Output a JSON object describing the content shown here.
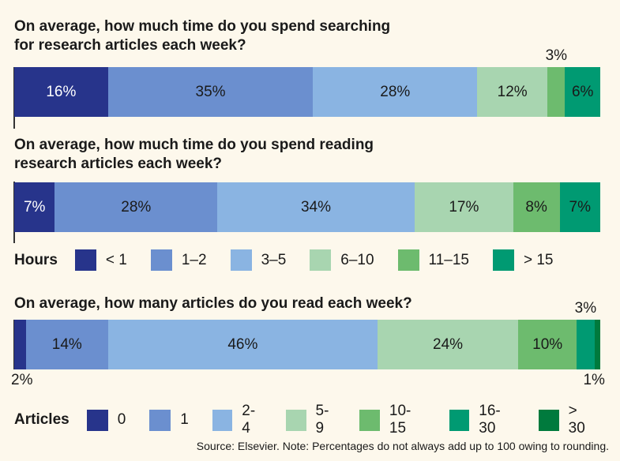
{
  "colors": {
    "c1": "#27348b",
    "c2": "#6b8fcf",
    "c3": "#8ab4e2",
    "c4": "#a8d5b0",
    "c5": "#6dbb6e",
    "c6": "#009a72",
    "c7": "#007a3d",
    "bg": "#fdf8ec"
  },
  "chart_data": [
    {
      "type": "bar",
      "stacked": true,
      "orientation": "horizontal",
      "title": "On average, how much time do you spend searching for research articles each week?",
      "categories": [
        "< 1",
        "1–2",
        "3–5",
        "6–10",
        "11–15",
        "> 15"
      ],
      "values": [
        16,
        35,
        28,
        12,
        3,
        6
      ],
      "labels": [
        "16%",
        "35%",
        "28%",
        "12%",
        "3%",
        "6%"
      ],
      "unit": "%"
    },
    {
      "type": "bar",
      "stacked": true,
      "orientation": "horizontal",
      "title": "On average, how much time do you spend reading research articles each week?",
      "categories": [
        "< 1",
        "1–2",
        "3–5",
        "6–10",
        "11–15",
        "> 15"
      ],
      "values": [
        7,
        28,
        34,
        17,
        8,
        7
      ],
      "labels": [
        "7%",
        "28%",
        "34%",
        "17%",
        "8%",
        "7%"
      ],
      "unit": "%"
    },
    {
      "type": "bar",
      "stacked": true,
      "orientation": "horizontal",
      "title": "On average, how many articles do you read each week?",
      "categories": [
        "0",
        "1",
        "2-4",
        "5-9",
        "10-15",
        "16-30",
        "> 30"
      ],
      "values": [
        2,
        14,
        46,
        24,
        10,
        3,
        1
      ],
      "labels": [
        "2%",
        "14%",
        "46%",
        "24%",
        "10%",
        "3%",
        "1%"
      ],
      "unit": "%"
    }
  ],
  "titles": {
    "q1a": "On average, how much time do you spend searching",
    "q1b": "for research articles each week?",
    "q2a": "On average, how much time do you spend reading",
    "q2b": "research articles each week?",
    "q3": "On average, how many articles do you read each week?"
  },
  "legend_hours": {
    "title": "Hours",
    "items": [
      "< 1",
      "1–2",
      "3–5",
      "6–10",
      "11–15",
      "> 15"
    ]
  },
  "legend_articles": {
    "title": "Articles",
    "items": [
      "0",
      "1",
      "2-4",
      "5-9",
      "10-15",
      "16-30",
      "> 30"
    ]
  },
  "source": "Source: Elsevier. Note: Percentages do not always add up to 100 owing to rounding."
}
